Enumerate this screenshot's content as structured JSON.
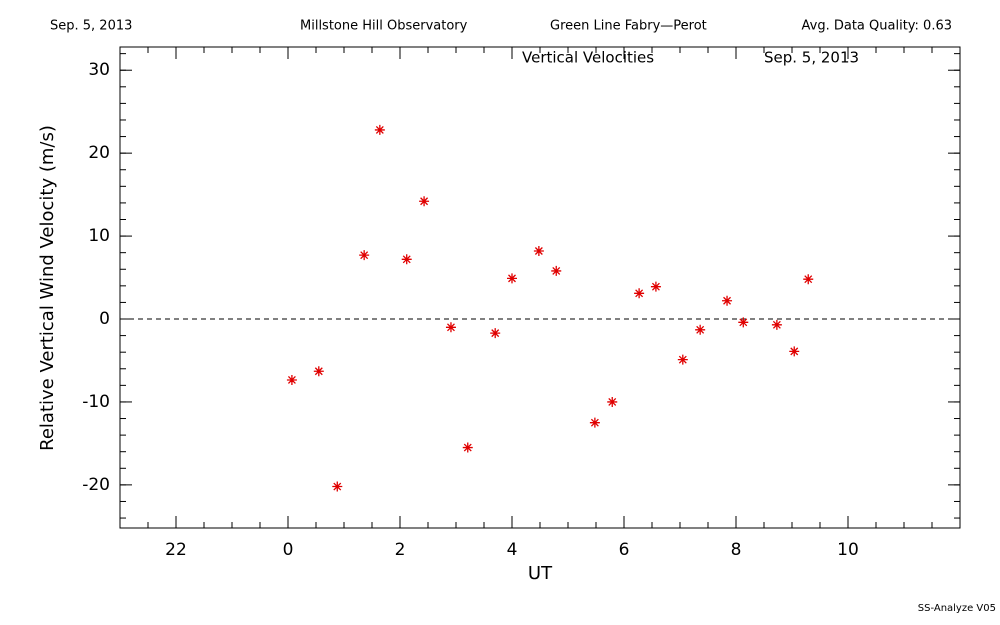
{
  "header": {
    "date": "Sep. 5, 2013",
    "observatory": "Millstone Hill Observatory",
    "instrument": "Green Line Fabry—Perot",
    "quality": "Avg. Data Quality: 0.63"
  },
  "footer": "SS-Analyze V05",
  "chart_data": {
    "type": "scatter",
    "title": "Vertical Velocities",
    "subtitle": "Sep. 5, 2013",
    "x_label": "UT",
    "y_label": "Relative Vertical Wind Velocity (m/s)",
    "color": "#e00000",
    "x": [
      0.07,
      0.55,
      0.88,
      1.36,
      1.64,
      2.12,
      2.43,
      2.91,
      3.21,
      3.7,
      4.0,
      4.48,
      4.79,
      5.48,
      5.79,
      6.27,
      6.57,
      7.05,
      7.36,
      7.84,
      8.13,
      8.73,
      9.04,
      9.29
    ],
    "values": [
      -7.35,
      -6.3,
      -20.2,
      7.7,
      22.8,
      7.2,
      14.2,
      -1.0,
      -15.5,
      -1.7,
      4.9,
      8.2,
      5.8,
      -12.5,
      -10.0,
      3.1,
      3.9,
      -4.9,
      -1.3,
      2.2,
      -0.4,
      -0.7,
      -3.9,
      4.8
    ],
    "xlim": [
      -3,
      12
    ],
    "xticks": [
      {
        "value": -2,
        "label": "22"
      },
      0,
      2,
      4,
      6,
      8,
      10
    ],
    "xminor_step": 0.5,
    "ylim": [
      -25.2,
      32.8
    ],
    "yticks": [
      -20,
      -10,
      0,
      10,
      20,
      30
    ],
    "yminor_step": 2,
    "reference_line": 0
  }
}
